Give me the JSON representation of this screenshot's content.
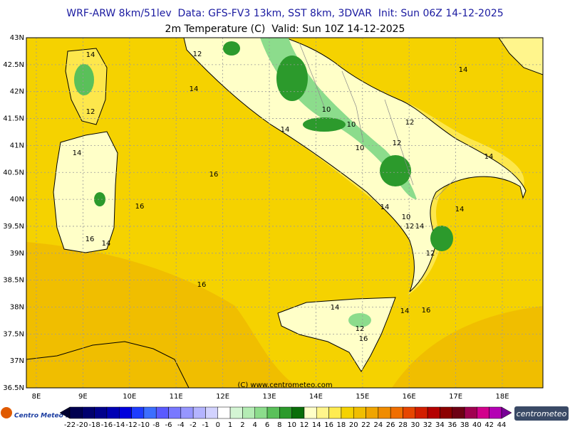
{
  "header": {
    "line1": "WRF-ARW 8km/51lev  Data: GFS-FV3 13km, SST 8km, 3DVAR  Init: Sun 06Z 14-12-2025",
    "line2": "2m Temperature (C)  Valid: Sun 10Z 14-12-2025"
  },
  "map": {
    "lat_ticks": [
      {
        "value": 43,
        "label": "43N"
      },
      {
        "value": 42.5,
        "label": "42.5N"
      },
      {
        "value": 42,
        "label": "42N"
      },
      {
        "value": 41.5,
        "label": "41.5N"
      },
      {
        "value": 41,
        "label": "41N"
      },
      {
        "value": 40.5,
        "label": "40.5N"
      },
      {
        "value": 40,
        "label": "40N"
      },
      {
        "value": 39.5,
        "label": "39.5N"
      },
      {
        "value": 39,
        "label": "39N"
      },
      {
        "value": 38.5,
        "label": "38.5N"
      },
      {
        "value": 38,
        "label": "38N"
      },
      {
        "value": 37.5,
        "label": "37.5N"
      },
      {
        "value": 37,
        "label": "37N"
      },
      {
        "value": 36.5,
        "label": "36.5N"
      }
    ],
    "lon_ticks": [
      {
        "value": 8,
        "label": "8E"
      },
      {
        "value": 9,
        "label": "9E"
      },
      {
        "value": 10,
        "label": "10E"
      },
      {
        "value": 11,
        "label": "11E"
      },
      {
        "value": 12,
        "label": "12E"
      },
      {
        "value": 13,
        "label": "13E"
      },
      {
        "value": 14,
        "label": "14E"
      },
      {
        "value": 15,
        "label": "15E"
      },
      {
        "value": 16,
        "label": "16E"
      },
      {
        "value": 17,
        "label": "17E"
      },
      {
        "value": 18,
        "label": "18E"
      }
    ],
    "contour_labels": [
      "14",
      "12",
      "14",
      "14",
      "12",
      "10",
      "10",
      "12",
      "14",
      "10",
      "12",
      "14",
      "14",
      "16",
      "16",
      "14",
      "14",
      "10",
      "12",
      "14",
      "16",
      "14",
      "12",
      "16",
      "14",
      "14",
      "16",
      "12",
      "16"
    ],
    "credit": "(C) www.centrometeo.com"
  },
  "colorbar": {
    "labels": [
      -22,
      -20,
      -18,
      -16,
      -14,
      -12,
      -10,
      -8,
      -6,
      -4,
      -2,
      -1,
      0,
      1,
      2,
      4,
      6,
      8,
      10,
      12,
      14,
      16,
      18,
      20,
      22,
      24,
      26,
      28,
      30,
      32,
      34,
      36,
      38,
      40,
      42,
      44
    ],
    "colors": [
      "#000030",
      "#000050",
      "#00006e",
      "#00008c",
      "#0000b4",
      "#0000dc",
      "#1e3cff",
      "#3c6eff",
      "#5a5aff",
      "#7878ff",
      "#9696ff",
      "#b4b4ff",
      "#d2d2ff",
      "#ffffff",
      "#d4f5d4",
      "#b4ecb4",
      "#8cdc8c",
      "#5ac05a",
      "#2c9a2c",
      "#0a6e0a",
      "#ffffc8",
      "#fff58c",
      "#ffeb50",
      "#f5d200",
      "#f0be00",
      "#f0a500",
      "#f08c00",
      "#f06e00",
      "#e64600",
      "#d21e00",
      "#b40000",
      "#8c0000",
      "#6e0014",
      "#a00050",
      "#d2008c",
      "#b400b4",
      "#780096"
    ]
  },
  "logos": {
    "left": "Centro Meteo Ita",
    "right": "centrometeo"
  }
}
